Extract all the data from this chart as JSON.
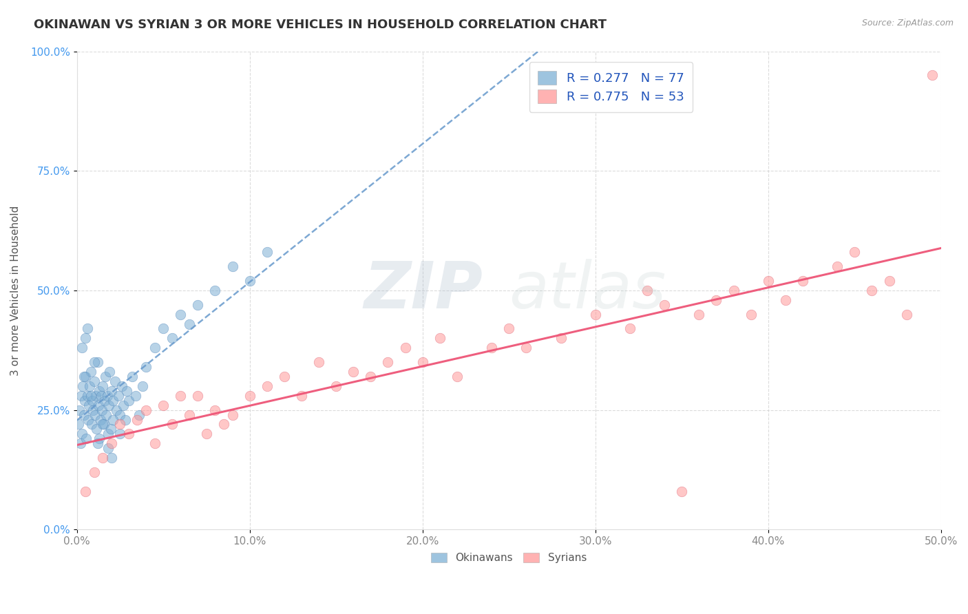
{
  "title": "OKINAWAN VS SYRIAN 3 OR MORE VEHICLES IN HOUSEHOLD CORRELATION CHART",
  "source": "Source: ZipAtlas.com",
  "ylabel": "3 or more Vehicles in Household",
  "xlim": [
    0,
    50
  ],
  "ylim": [
    0,
    100
  ],
  "xticks": [
    0,
    10,
    20,
    30,
    40,
    50
  ],
  "xticklabels": [
    "0.0%",
    "10.0%",
    "20.0%",
    "30.0%",
    "40.0%",
    "50.0%"
  ],
  "yticks": [
    0,
    25,
    50,
    75,
    100
  ],
  "yticklabels": [
    "0.0%",
    "25.0%",
    "50.0%",
    "75.0%",
    "100.0%"
  ],
  "okinawan_color": "#7EB0D5",
  "okinawan_edge_color": "#5588BB",
  "syrian_color": "#FF9999",
  "syrian_edge_color": "#DD6677",
  "okinawan_line_color": "#6699CC",
  "syrian_line_color": "#EE5577",
  "okinawan_R": 0.277,
  "okinawan_N": 77,
  "syrian_R": 0.775,
  "syrian_N": 53,
  "legend_entries": [
    "Okinawans",
    "Syrians"
  ],
  "watermark_zip": "ZIP",
  "watermark_atlas": "atlas",
  "title_fontsize": 13,
  "source_fontsize": 9,
  "legend_fontsize": 13,
  "tick_fontsize": 11,
  "ylabel_fontsize": 11,
  "dot_size": 110,
  "dot_alpha": 0.55,
  "line_alpha": 0.85,
  "grid_color": "#CCCCCC",
  "grid_alpha": 0.7,
  "okinawan_x": [
    0.1,
    0.15,
    0.2,
    0.25,
    0.3,
    0.35,
    0.4,
    0.45,
    0.5,
    0.55,
    0.6,
    0.65,
    0.7,
    0.75,
    0.8,
    0.85,
    0.9,
    0.95,
    1.0,
    1.05,
    1.1,
    1.15,
    1.2,
    1.25,
    1.3,
    1.35,
    1.4,
    1.45,
    1.5,
    1.55,
    1.6,
    1.65,
    1.7,
    1.75,
    1.8,
    1.85,
    1.9,
    1.95,
    2.0,
    2.1,
    2.2,
    2.3,
    2.4,
    2.5,
    2.6,
    2.7,
    2.8,
    2.9,
    3.0,
    3.2,
    3.4,
    3.6,
    3.8,
    4.0,
    4.5,
    5.0,
    5.5,
    6.0,
    6.5,
    7.0,
    8.0,
    9.0,
    10.0,
    11.0,
    2.5,
    1.0,
    0.5,
    0.3,
    1.8,
    2.1,
    1.3,
    0.8,
    2.0,
    1.5,
    0.6,
    0.4,
    1.2
  ],
  "okinawan_y": [
    22,
    25,
    18,
    28,
    20,
    30,
    24,
    27,
    32,
    19,
    28,
    23,
    26,
    30,
    33,
    22,
    27,
    25,
    31,
    24,
    28,
    21,
    35,
    26,
    29,
    23,
    28,
    25,
    30,
    22,
    27,
    32,
    24,
    28,
    20,
    26,
    33,
    21,
    29,
    27,
    31,
    25,
    28,
    24,
    30,
    26,
    23,
    29,
    27,
    32,
    28,
    24,
    30,
    34,
    38,
    42,
    40,
    45,
    43,
    47,
    50,
    55,
    52,
    58,
    20,
    35,
    40,
    38,
    17,
    23,
    19,
    28,
    15,
    22,
    42,
    32,
    18
  ],
  "syrian_x": [
    0.5,
    1.0,
    1.5,
    2.0,
    2.5,
    3.0,
    3.5,
    4.0,
    4.5,
    5.0,
    5.5,
    6.0,
    6.5,
    7.0,
    7.5,
    8.0,
    8.5,
    9.0,
    10.0,
    11.0,
    12.0,
    13.0,
    14.0,
    15.0,
    16.0,
    17.0,
    18.0,
    19.0,
    20.0,
    21.0,
    22.0,
    24.0,
    25.0,
    26.0,
    28.0,
    30.0,
    32.0,
    33.0,
    34.0,
    35.0,
    36.0,
    37.0,
    38.0,
    39.0,
    40.0,
    41.0,
    42.0,
    44.0,
    45.0,
    46.0,
    47.0,
    48.0,
    49.5
  ],
  "syrian_y": [
    8,
    12,
    15,
    18,
    22,
    20,
    23,
    25,
    18,
    26,
    22,
    28,
    24,
    28,
    20,
    25,
    22,
    24,
    28,
    30,
    32,
    28,
    35,
    30,
    33,
    32,
    35,
    38,
    35,
    40,
    32,
    38,
    42,
    38,
    40,
    45,
    42,
    50,
    47,
    8,
    45,
    48,
    50,
    45,
    52,
    48,
    52,
    55,
    58,
    50,
    52,
    45,
    95
  ]
}
